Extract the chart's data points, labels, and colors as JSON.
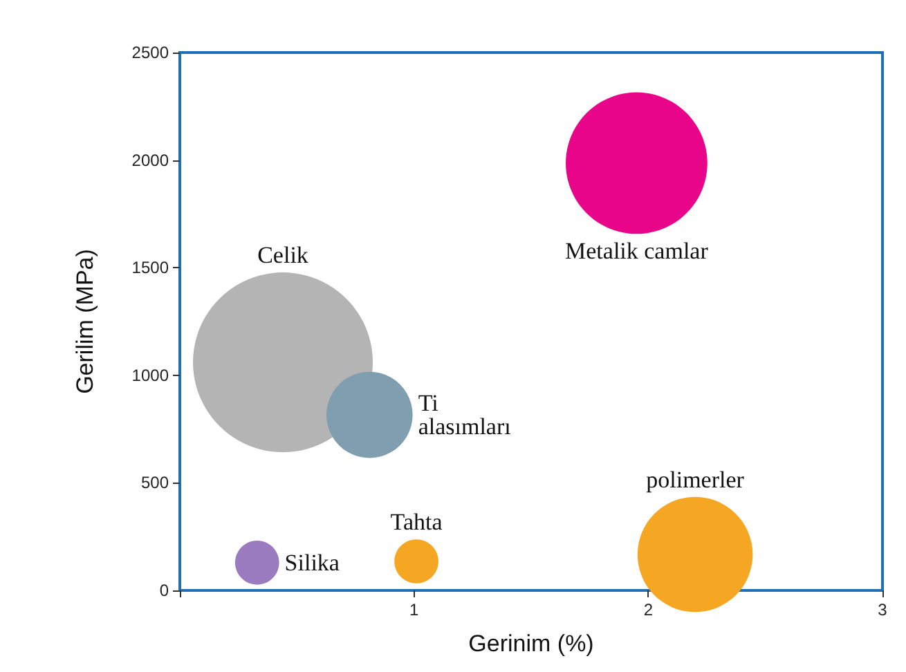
{
  "chart_data": {
    "type": "bubble",
    "xlabel": "Gerinim (%)",
    "ylabel": "Gerilim (MPa)",
    "xlim": [
      0,
      3
    ],
    "xticks": [
      {
        "value": 0,
        "label": null
      },
      1,
      2,
      3
    ],
    "ylim": [
      0,
      2500
    ],
    "yticks": [
      0,
      500,
      1000,
      1500,
      2000,
      2500
    ],
    "grid": false,
    "legend": false,
    "series": [
      {
        "name": "Celik",
        "color": "#b4b4b4",
        "x": [
          0.44
        ],
        "values": [
          1060
        ],
        "sizes": [
          1
        ]
      },
      {
        "name": "Ti alasımları",
        "color": "#7f9fb0",
        "x": [
          0.81
        ],
        "values": [
          816
        ],
        "sizes": [
          0.23
        ]
      },
      {
        "name": "Metalik camlar",
        "color": "#e8058a",
        "x": [
          1.95
        ],
        "values": [
          1986
        ],
        "sizes": [
          0.62
        ]
      },
      {
        "name": "Silika",
        "color": "#9b7bbf",
        "x": [
          0.33
        ],
        "values": [
          129
        ],
        "sizes": [
          0.06
        ]
      },
      {
        "name": "Tahta",
        "color": "#f5a623",
        "x": [
          1.01
        ],
        "values": [
          135
        ],
        "sizes": [
          0.06
        ]
      },
      {
        "name": "polimerler",
        "color": "#f5a623",
        "x": [
          2.2
        ],
        "values": [
          167
        ],
        "sizes": [
          0.41
        ]
      }
    ]
  }
}
